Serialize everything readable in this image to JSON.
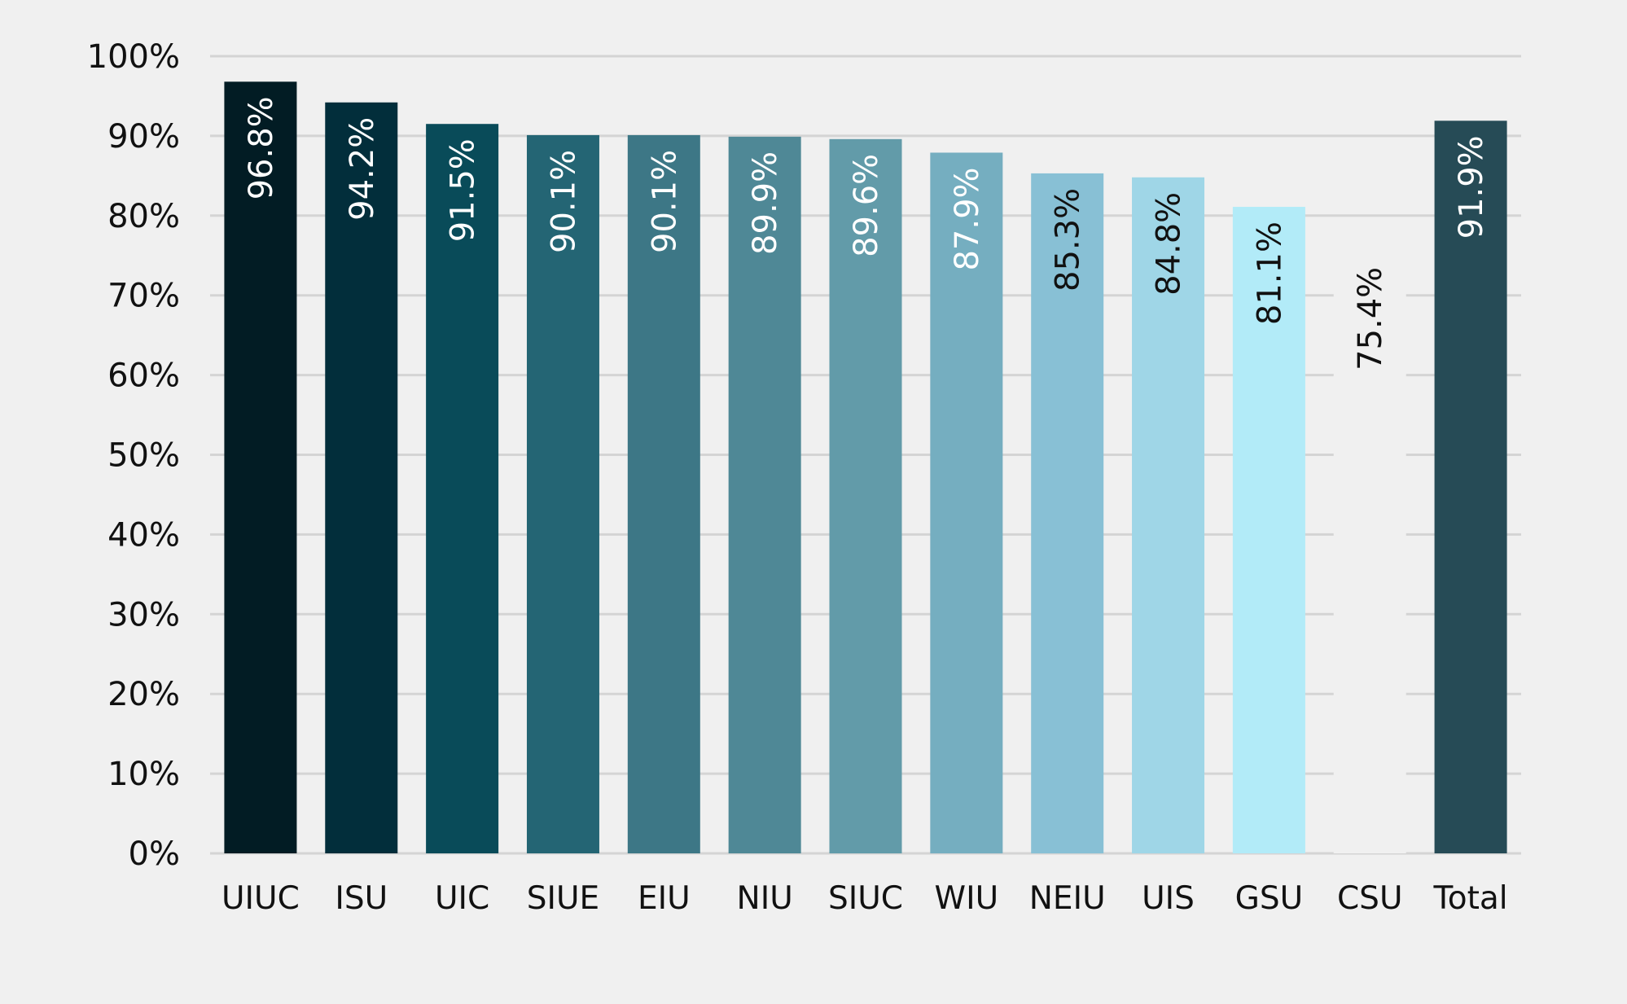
{
  "chart_data": {
    "type": "bar",
    "title": "",
    "xlabel": "",
    "ylabel": "",
    "ylim": [
      0,
      100
    ],
    "y_ticks": [
      "0%",
      "10%",
      "20%",
      "30%",
      "40%",
      "50%",
      "60%",
      "70%",
      "80%",
      "90%",
      "100%"
    ],
    "y_tick_values": [
      0,
      10,
      20,
      30,
      40,
      50,
      60,
      70,
      80,
      90,
      100
    ],
    "grid": true,
    "legend": "none",
    "categories": [
      "UIUC",
      "ISU",
      "UIC",
      "SIUE",
      "EIU",
      "NIU",
      "SIUC",
      "WIU",
      "NEIU",
      "UIS",
      "GSU",
      "CSU",
      "Total"
    ],
    "values": [
      96.8,
      94.2,
      91.5,
      90.1,
      90.1,
      89.9,
      89.6,
      87.9,
      85.3,
      84.8,
      81.1,
      75.4,
      91.9
    ],
    "data_labels": [
      "96.8%",
      "94.2%",
      "91.5%",
      "90.1%",
      "90.1%",
      "89.9%",
      "89.6%",
      "87.9%",
      "85.3%",
      "84.8%",
      "81.1%",
      "75.4%",
      "91.9%"
    ],
    "bar_colors": [
      "#021c24",
      "#022e3b",
      "#094b59",
      "#246574",
      "#3d7786",
      "#4f8896",
      "#629ba9",
      "#75aec0",
      "#88c0d5",
      "#9fd6e7",
      "#b2ebf8",
      "#f0f0f0",
      "#264b56"
    ],
    "label_colors": [
      "#ffffff",
      "#ffffff",
      "#ffffff",
      "#ffffff",
      "#ffffff",
      "#ffffff",
      "#ffffff",
      "#ffffff",
      "#111111",
      "#111111",
      "#111111",
      "#111111",
      "#ffffff"
    ]
  }
}
